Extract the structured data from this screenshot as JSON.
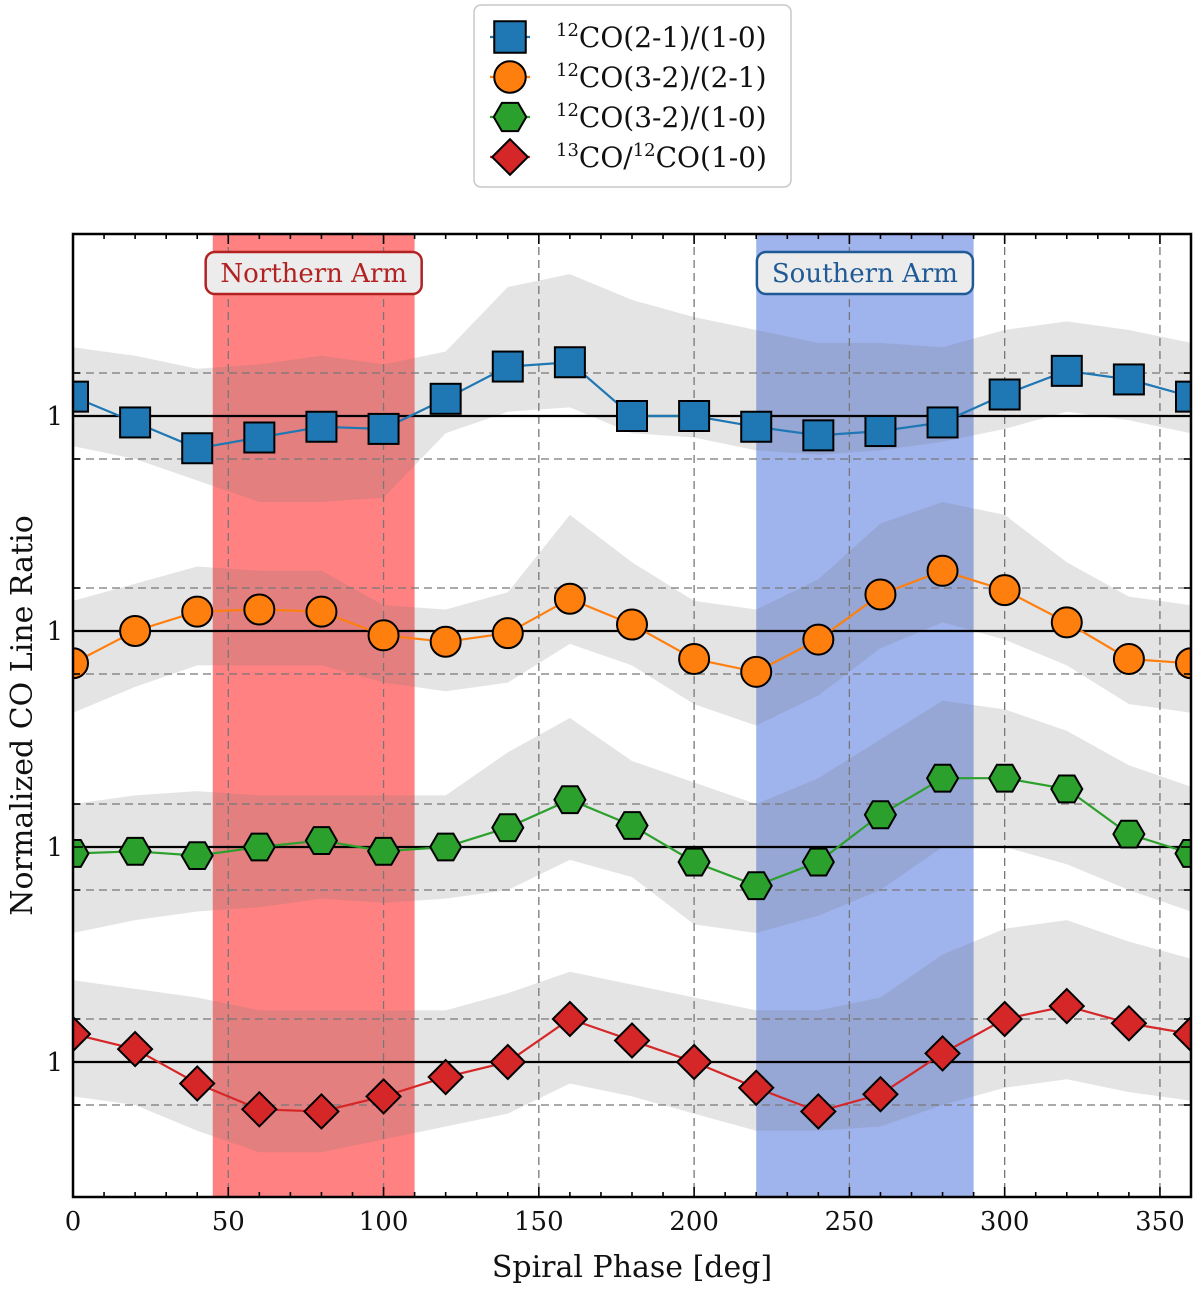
{
  "chart_data": {
    "type": "line",
    "xlabel": "Spiral Phase [deg]",
    "ylabel": "Normalized CO Line Ratio",
    "xlim": [
      0,
      360
    ],
    "x_ticks": [
      0,
      50,
      100,
      150,
      200,
      250,
      300,
      350
    ],
    "row_ref_label": "1",
    "grid": true,
    "legend_position": "top-center",
    "bands": [
      {
        "label": "Northern Arm",
        "x_range": [
          45,
          110
        ],
        "color": "#ff6b6b",
        "edge_color": "#b22222"
      },
      {
        "label": "Southern Arm",
        "x_range": [
          220,
          290
        ],
        "color": "#8ea6ea",
        "edge_color": "#1f5a96"
      }
    ],
    "x": [
      0,
      20,
      40,
      60,
      80,
      100,
      120,
      140,
      160,
      180,
      200,
      220,
      240,
      260,
      280,
      300,
      320,
      340,
      360
    ],
    "series": [
      {
        "name_sup": "12",
        "name": "CO(2-1)/(1-0)",
        "color": "#1f77b4",
        "marker": "square",
        "offsets": [
          0.45,
          -0.15,
          -0.75,
          -0.5,
          -0.25,
          -0.3,
          0.4,
          1.15,
          1.25,
          0.0,
          0.0,
          -0.25,
          -0.45,
          -0.35,
          -0.15,
          0.5,
          1.05,
          0.85,
          0.45
        ],
        "band_hi": [
          1.6,
          1.4,
          1.1,
          1.2,
          1.4,
          1.2,
          1.5,
          3.0,
          3.3,
          2.7,
          2.3,
          2.0,
          1.7,
          1.7,
          1.6,
          2.0,
          2.2,
          2.0,
          1.7
        ],
        "band_lo": [
          -0.7,
          -1.0,
          -1.5,
          -2.0,
          -2.0,
          -1.9,
          -0.4,
          0.1,
          0.2,
          -0.4,
          -0.5,
          -0.8,
          -0.9,
          -0.8,
          -0.6,
          -0.3,
          0.1,
          -0.1,
          -0.4
        ]
      },
      {
        "name_sup": "12",
        "name": "CO(3-2)/(2-1)",
        "color": "#ff7f0e",
        "marker": "circle",
        "offsets": [
          -0.75,
          0.0,
          0.45,
          0.5,
          0.45,
          -0.1,
          -0.25,
          -0.05,
          0.75,
          0.15,
          -0.65,
          -0.95,
          -0.2,
          0.85,
          1.4,
          0.95,
          0.2,
          -0.65,
          -0.75
        ],
        "band_hi": [
          0.7,
          1.1,
          1.5,
          1.4,
          1.4,
          0.6,
          0.5,
          0.9,
          2.7,
          1.6,
          0.7,
          0.5,
          1.2,
          2.5,
          3.0,
          2.7,
          1.6,
          0.8,
          0.6
        ],
        "band_lo": [
          -1.9,
          -1.3,
          -0.8,
          -0.8,
          -0.8,
          -1.2,
          -1.4,
          -1.2,
          -0.3,
          -0.8,
          -1.7,
          -2.2,
          -1.5,
          -0.4,
          0.2,
          -0.2,
          -0.8,
          -1.7,
          -1.9
        ]
      },
      {
        "name_sup": "12",
        "name": "CO(3-2)/(1-0)",
        "color": "#2ca02c",
        "marker": "hexagon",
        "offsets": [
          -0.15,
          -0.1,
          -0.2,
          0.0,
          0.15,
          -0.1,
          0.0,
          0.45,
          1.1,
          0.5,
          -0.35,
          -0.9,
          -0.35,
          0.75,
          1.6,
          1.6,
          1.35,
          0.3,
          -0.15
        ],
        "band_hi": [
          1.0,
          1.2,
          1.3,
          1.2,
          1.2,
          1.2,
          1.2,
          2.2,
          3.0,
          2.0,
          1.5,
          1.0,
          1.6,
          2.5,
          3.4,
          3.2,
          2.7,
          1.9,
          1.4
        ],
        "band_lo": [
          -2.0,
          -1.7,
          -1.5,
          -1.4,
          -1.2,
          -1.3,
          -1.2,
          -1.0,
          -0.3,
          -0.7,
          -1.8,
          -2.0,
          -1.6,
          -1.0,
          0.0,
          0.0,
          -0.4,
          -1.0,
          -1.5
        ]
      },
      {
        "name_sup": "13",
        "name": "CO/",
        "name_sup2": "12",
        "name_tail": "CO(1-0)",
        "color": "#d62728",
        "marker": "diamond",
        "offsets": [
          0.65,
          0.3,
          -0.5,
          -1.1,
          -1.15,
          -0.8,
          -0.35,
          0.0,
          1.0,
          0.5,
          0.0,
          -0.6,
          -1.15,
          -0.75,
          0.2,
          1.0,
          1.3,
          0.9,
          0.65
        ],
        "band_hi": [
          1.9,
          1.7,
          1.5,
          1.2,
          1.2,
          1.2,
          1.2,
          1.6,
          2.1,
          1.8,
          1.5,
          1.2,
          1.2,
          1.5,
          2.5,
          3.1,
          3.3,
          2.8,
          2.4
        ],
        "band_lo": [
          -0.8,
          -1.0,
          -1.6,
          -2.1,
          -2.1,
          -1.8,
          -1.5,
          -1.2,
          -0.5,
          -0.8,
          -1.2,
          -1.6,
          -1.6,
          -1.5,
          -1.0,
          -0.6,
          -0.4,
          -0.7,
          -0.9
        ]
      }
    ]
  }
}
